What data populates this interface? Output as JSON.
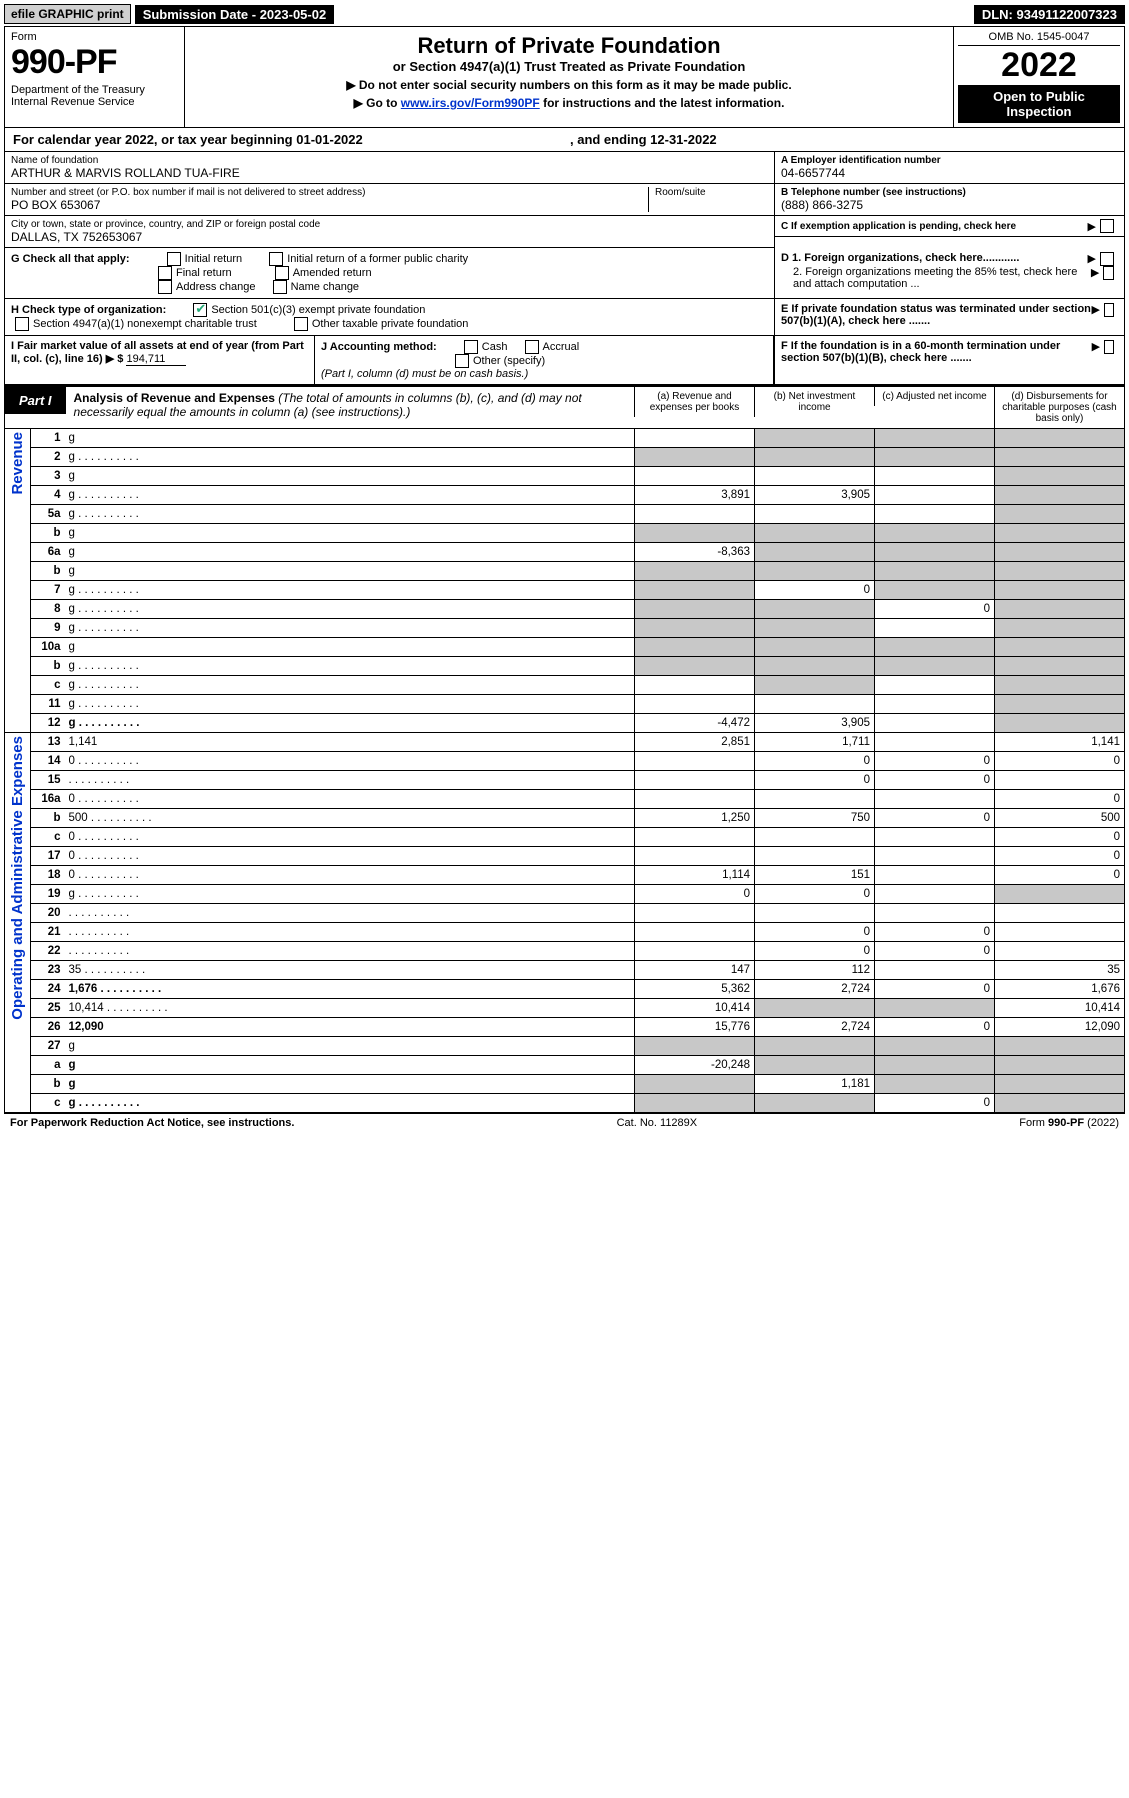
{
  "topbar": {
    "efile": "efile GRAPHIC print",
    "submission": "Submission Date - 2023-05-02",
    "dln": "DLN: 93491122007323"
  },
  "header": {
    "form_label": "Form",
    "form_number": "990-PF",
    "dept": "Department of the Treasury\nInternal Revenue Service",
    "title": "Return of Private Foundation",
    "subtitle": "or Section 4947(a)(1) Trust Treated as Private Foundation",
    "note1": "▶ Do not enter social security numbers on this form as it may be made public.",
    "note2_pre": "▶ Go to ",
    "note2_link": "www.irs.gov/Form990PF",
    "note2_post": " for instructions and the latest information.",
    "omb": "OMB No. 1545-0047",
    "year": "2022",
    "open": "Open to Public Inspection"
  },
  "cal_year": {
    "text_pre": "For calendar year 2022, or tax year beginning ",
    "begin": "01-01-2022",
    "text_mid": ", and ending ",
    "end": "12-31-2022"
  },
  "info": {
    "name_label": "Name of foundation",
    "name": "ARTHUR & MARVIS ROLLAND TUA-FIRE",
    "addr_label": "Number and street (or P.O. box number if mail is not delivered to street address)",
    "addr": "PO BOX 653067",
    "room_label": "Room/suite",
    "city_label": "City or town, state or province, country, and ZIP or foreign postal code",
    "city": "DALLAS, TX  752653067",
    "a_label": "A Employer identification number",
    "a_val": "04-6657744",
    "b_label": "B Telephone number (see instructions)",
    "b_val": "(888) 866-3275",
    "c_label": "C If exemption application is pending, check here"
  },
  "g": {
    "label": "G Check all that apply:",
    "opts": [
      "Initial return",
      "Initial return of a former public charity",
      "Final return",
      "Amended return",
      "Address change",
      "Name change"
    ]
  },
  "h": {
    "label": "H Check type of organization:",
    "opt1": "Section 501(c)(3) exempt private foundation",
    "opt1_checked": true,
    "opt2": "Section 4947(a)(1) nonexempt charitable trust",
    "opt3": "Other taxable private foundation"
  },
  "i": {
    "label": "I Fair market value of all assets at end of year (from Part II, col. (c), line 16) ▶ $",
    "val": "194,711"
  },
  "j": {
    "label": "J Accounting method:",
    "cash": "Cash",
    "accrual": "Accrual",
    "other": "Other (specify)",
    "note": "(Part I, column (d) must be on cash basis.)"
  },
  "d": {
    "d1": "D 1. Foreign organizations, check here............",
    "d2": "2. Foreign organizations meeting the 85% test, check here and attach computation ..."
  },
  "e": {
    "label": "E  If private foundation status was terminated under section 507(b)(1)(A), check here ......."
  },
  "f": {
    "label": "F  If the foundation is in a 60-month termination under section 507(b)(1)(B), check here ......."
  },
  "part1": {
    "tab": "Part I",
    "title_b": "Analysis of Revenue and Expenses",
    "title_rest": " (The total of amounts in columns (b), (c), and (d) may not necessarily equal the amounts in column (a) (see instructions).)",
    "cols": {
      "a": "(a) Revenue and expenses per books",
      "b": "(b) Net investment income",
      "c": "(c) Adjusted net income",
      "d": "(d) Disbursements for charitable purposes (cash basis only)"
    }
  },
  "side_labels": {
    "revenue": "Revenue",
    "opex": "Operating and Administrative Expenses"
  },
  "rows": [
    {
      "n": "1",
      "d": "g",
      "a": "",
      "b": "g",
      "c": "g"
    },
    {
      "n": "2",
      "d": "g",
      "dots": true,
      "a": "g",
      "b": "g",
      "c": "g"
    },
    {
      "n": "3",
      "d": "g",
      "a": "",
      "b": "",
      "c": ""
    },
    {
      "n": "4",
      "d": "g",
      "dots": true,
      "a": "3,891",
      "b": "3,905",
      "c": ""
    },
    {
      "n": "5a",
      "d": "g",
      "dots": true,
      "a": "",
      "b": "",
      "c": ""
    },
    {
      "n": "b",
      "d": "g",
      "a": "g",
      "b": "g",
      "c": "g"
    },
    {
      "n": "6a",
      "d": "g",
      "a": "-8,363",
      "b": "g",
      "c": "g"
    },
    {
      "n": "b",
      "d": "g",
      "a": "g",
      "b": "g",
      "c": "g"
    },
    {
      "n": "7",
      "d": "g",
      "dots": true,
      "a": "g",
      "b": "0",
      "c": "g"
    },
    {
      "n": "8",
      "d": "g",
      "dots": true,
      "a": "g",
      "b": "g",
      "c": "0"
    },
    {
      "n": "9",
      "d": "g",
      "dots": true,
      "a": "g",
      "b": "g",
      "c": ""
    },
    {
      "n": "10a",
      "d": "g",
      "a": "g",
      "b": "g",
      "c": "g"
    },
    {
      "n": "b",
      "d": "g",
      "dots": true,
      "a": "g",
      "b": "g",
      "c": "g"
    },
    {
      "n": "c",
      "d": "g",
      "dots": true,
      "a": "",
      "b": "g",
      "c": ""
    },
    {
      "n": "11",
      "d": "g",
      "dots": true,
      "a": "",
      "b": "",
      "c": ""
    },
    {
      "n": "12",
      "d": "g",
      "bold": true,
      "dots": true,
      "a": "-4,472",
      "b": "3,905",
      "c": ""
    },
    {
      "n": "13",
      "d": "1,141",
      "a": "2,851",
      "b": "1,711",
      "c": ""
    },
    {
      "n": "14",
      "d": "0",
      "dots": true,
      "a": "",
      "b": "0",
      "c": "0"
    },
    {
      "n": "15",
      "d": "",
      "dots": true,
      "a": "",
      "b": "0",
      "c": "0"
    },
    {
      "n": "16a",
      "d": "0",
      "dots": true,
      "a": "",
      "b": "",
      "c": ""
    },
    {
      "n": "b",
      "d": "500",
      "dots": true,
      "a": "1,250",
      "b": "750",
      "c": "0"
    },
    {
      "n": "c",
      "d": "0",
      "dots": true,
      "a": "",
      "b": "",
      "c": ""
    },
    {
      "n": "17",
      "d": "0",
      "dots": true,
      "a": "",
      "b": "",
      "c": ""
    },
    {
      "n": "18",
      "d": "0",
      "dots": true,
      "a": "1,114",
      "b": "151",
      "c": ""
    },
    {
      "n": "19",
      "d": "g",
      "dots": true,
      "a": "0",
      "b": "0",
      "c": ""
    },
    {
      "n": "20",
      "d": "",
      "dots": true,
      "a": "",
      "b": "",
      "c": ""
    },
    {
      "n": "21",
      "d": "",
      "dots": true,
      "a": "",
      "b": "0",
      "c": "0"
    },
    {
      "n": "22",
      "d": "",
      "dots": true,
      "a": "",
      "b": "0",
      "c": "0"
    },
    {
      "n": "23",
      "d": "35",
      "dots": true,
      "a": "147",
      "b": "112",
      "c": ""
    },
    {
      "n": "24",
      "d": "1,676",
      "bold": true,
      "dots": true,
      "a": "5,362",
      "b": "2,724",
      "c": "0"
    },
    {
      "n": "25",
      "d": "10,414",
      "dots": true,
      "a": "10,414",
      "b": "g",
      "c": "g"
    },
    {
      "n": "26",
      "d": "12,090",
      "bold": true,
      "a": "15,776",
      "b": "2,724",
      "c": "0"
    },
    {
      "n": "27",
      "d": "g",
      "a": "g",
      "b": "g",
      "c": "g"
    },
    {
      "n": "a",
      "d": "g",
      "bold": true,
      "a": "-20,248",
      "b": "g",
      "c": "g"
    },
    {
      "n": "b",
      "d": "g",
      "bold": true,
      "a": "g",
      "b": "1,181",
      "c": "g"
    },
    {
      "n": "c",
      "d": "g",
      "bold": true,
      "dots": true,
      "a": "g",
      "b": "g",
      "c": "0"
    }
  ],
  "footer": {
    "left": "For Paperwork Reduction Act Notice, see instructions.",
    "mid": "Cat. No. 11289X",
    "right": "Form 990-PF (2022)"
  },
  "colors": {
    "black": "#000000",
    "grey_cell": "#c8c8c8",
    "link": "#0033cc",
    "check_green": "#22aa77"
  }
}
